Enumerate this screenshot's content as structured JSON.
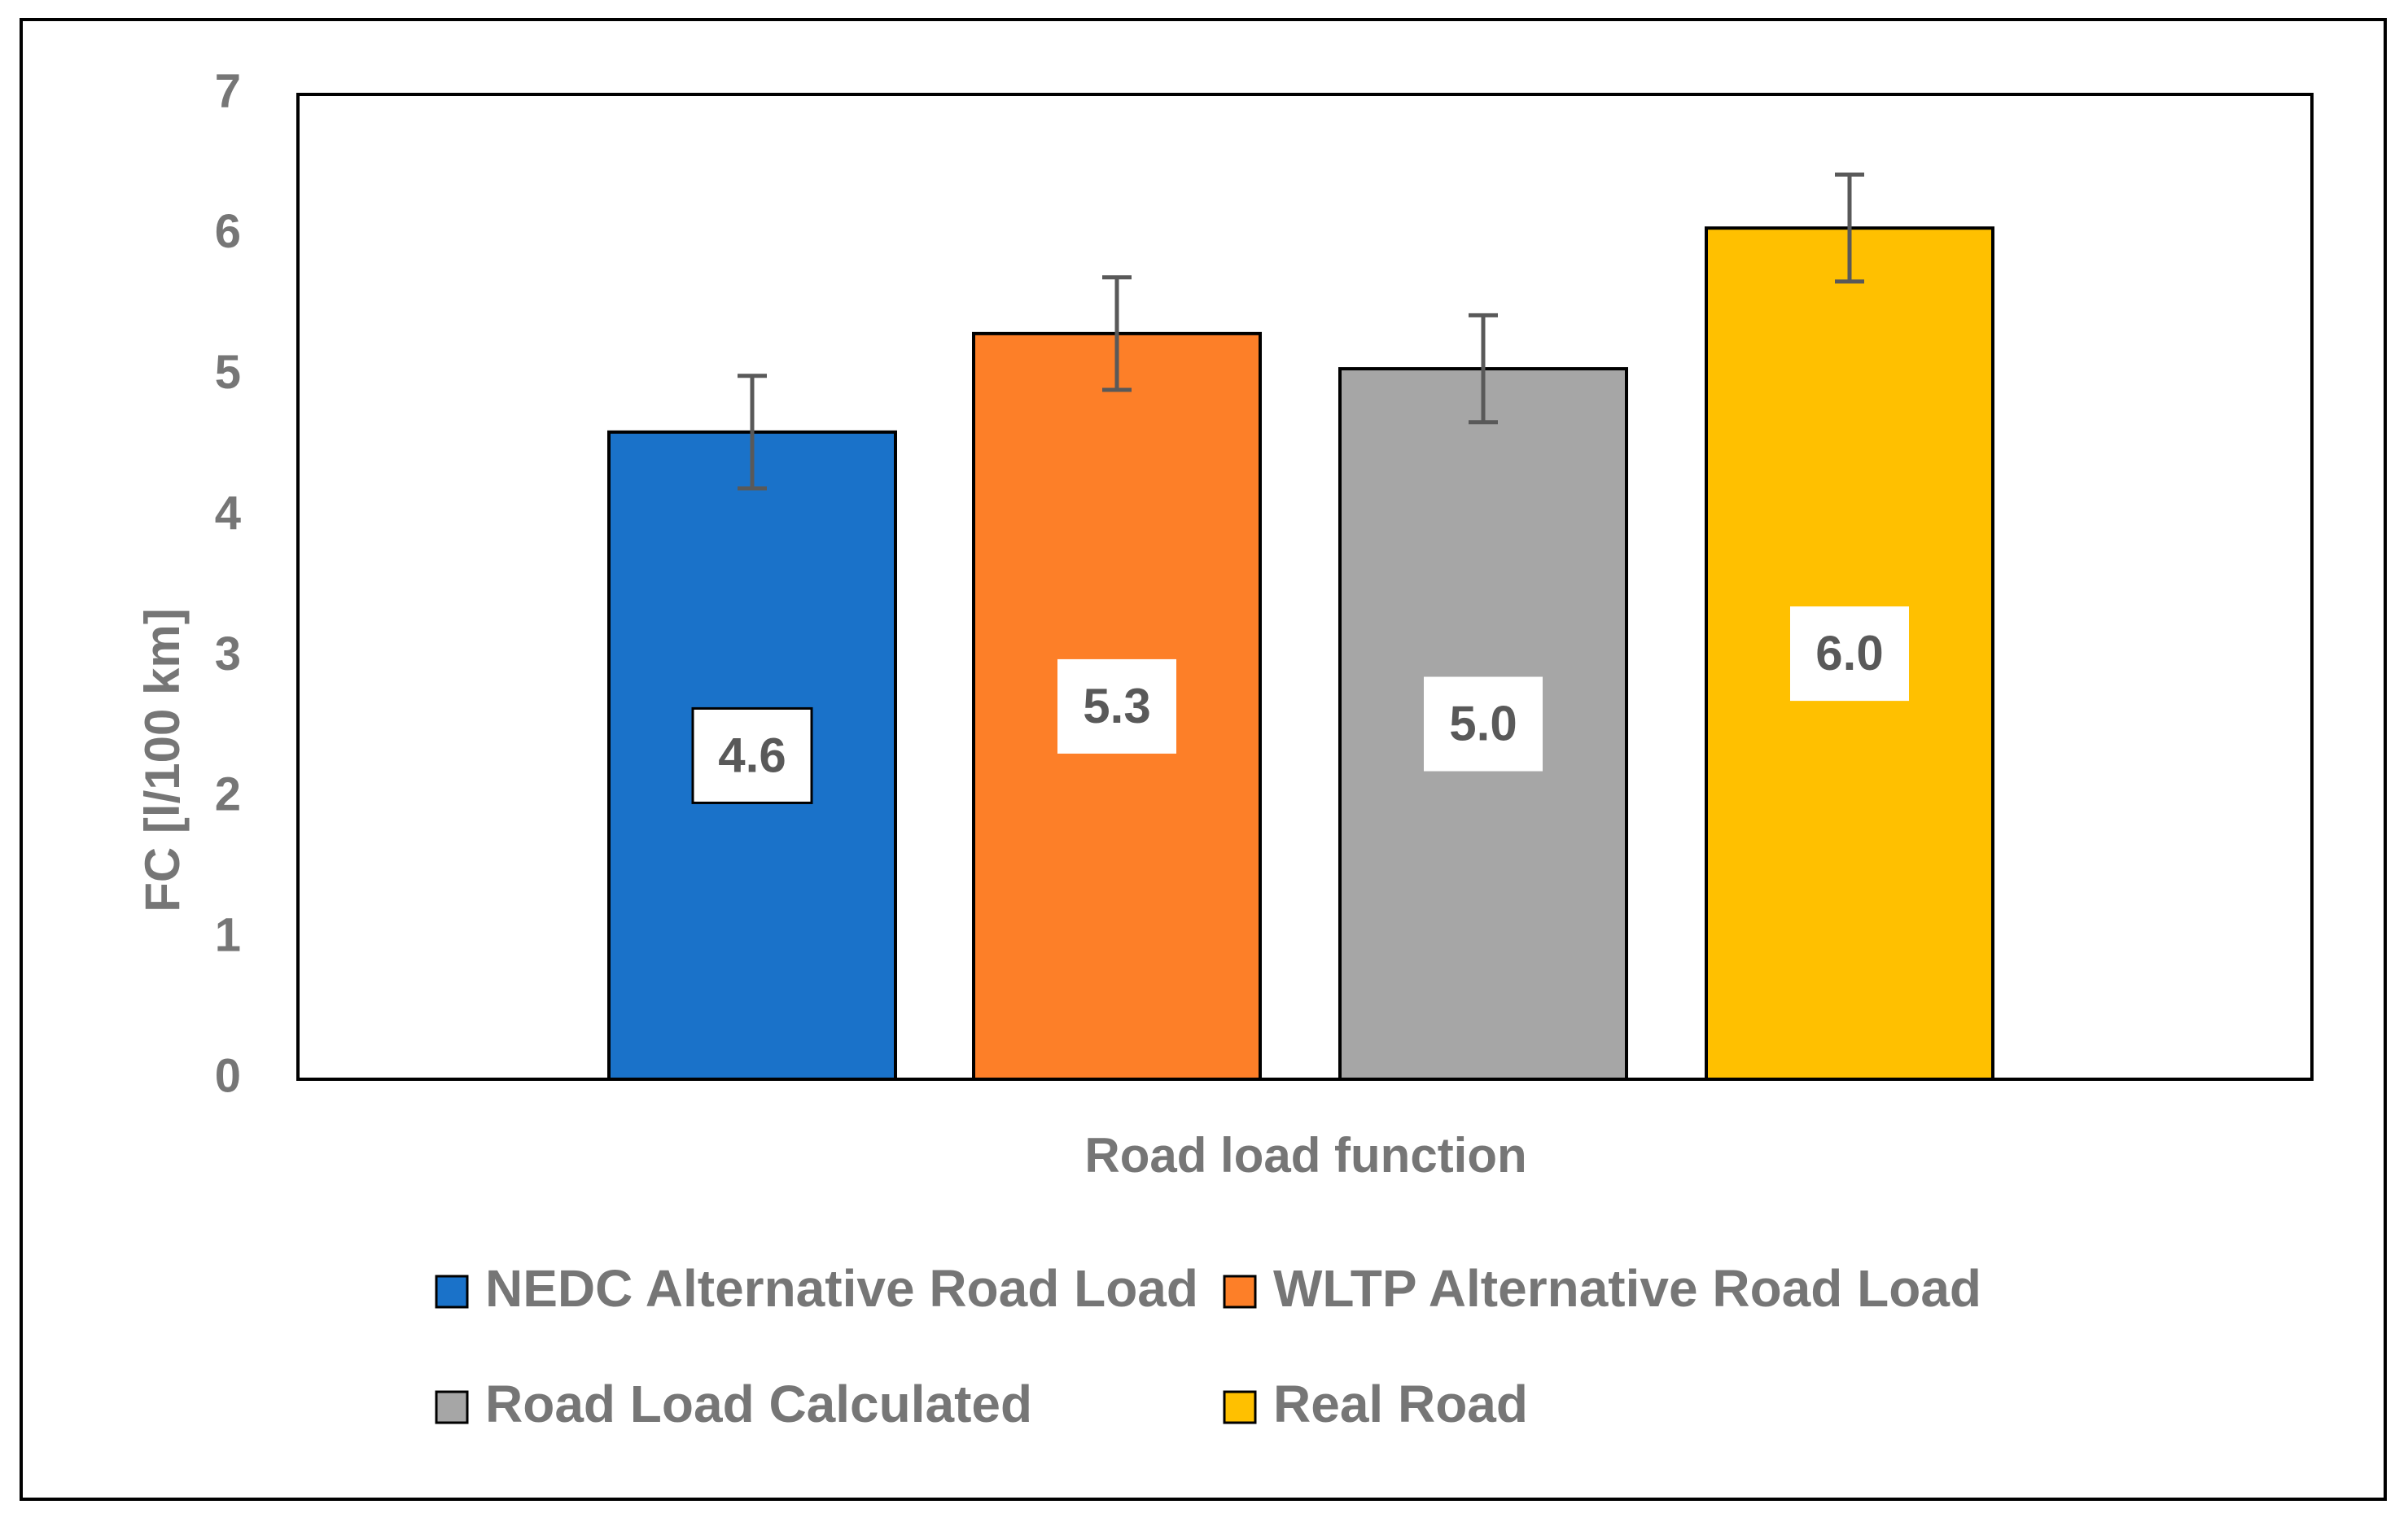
{
  "chart_data": {
    "type": "bar",
    "title": "",
    "xlabel": "Road load function",
    "ylabel": "FC [l/100 km]",
    "ylim": [
      0,
      7
    ],
    "yticks": [
      0,
      1,
      2,
      3,
      4,
      5,
      6,
      7
    ],
    "grid": false,
    "legend_position": "bottom",
    "series": [
      {
        "name": "NEDC Alternative Road Load",
        "value": 4.6,
        "label": "4.6",
        "error": 0.4,
        "color": "#1a72c9"
      },
      {
        "name": "WLTP Alternative Road Load",
        "value": 5.3,
        "label": "5.3",
        "error": 0.4,
        "color": "#fd7f28"
      },
      {
        "name": "Road Load Calculated",
        "value": 5.05,
        "label": "5.0",
        "error": 0.38,
        "color": "#a6a6a6"
      },
      {
        "name": "Real Road",
        "value": 6.05,
        "label": "6.0",
        "error": 0.38,
        "color": "#ffc000"
      }
    ]
  }
}
